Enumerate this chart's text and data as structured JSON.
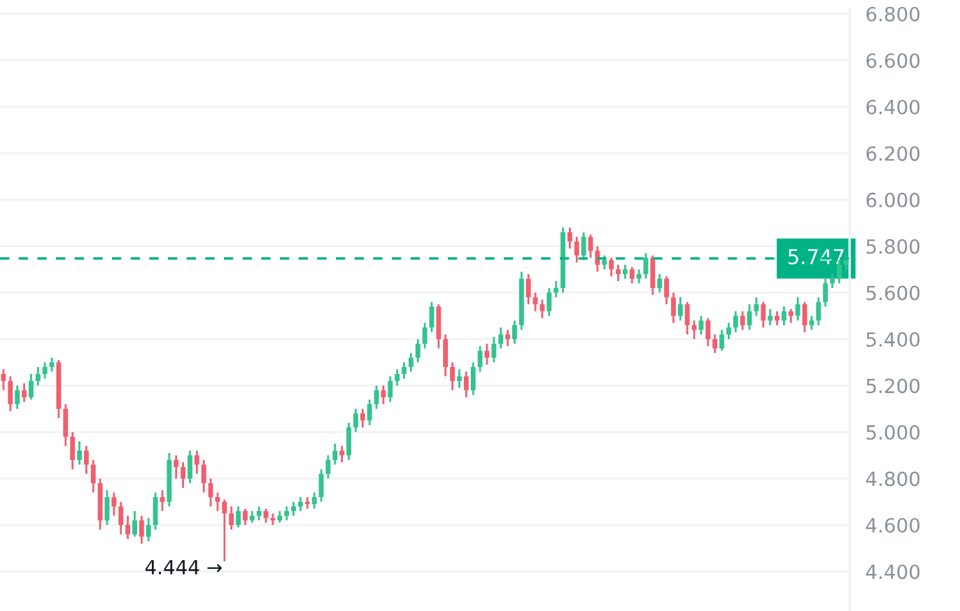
{
  "chart_data": {
    "type": "candlestick",
    "categories": [
      null,
      null,
      null,
      null,
      null,
      null,
      null,
      null,
      null,
      null,
      null,
      null,
      null,
      null,
      null,
      null,
      null,
      null,
      null,
      null,
      null,
      null,
      null,
      null,
      null,
      null,
      null,
      null,
      null,
      null,
      null,
      null,
      null,
      null,
      null,
      null,
      null,
      null,
      null,
      null,
      null,
      null,
      null,
      null,
      null,
      null,
      null,
      null,
      null,
      null,
      null,
      null,
      null,
      null,
      null,
      null,
      null,
      null,
      null,
      null,
      null,
      null,
      null,
      null,
      null,
      null,
      null,
      null,
      null,
      null,
      null,
      null,
      null,
      null,
      null,
      null,
      null,
      null,
      null,
      null,
      null,
      null,
      null,
      null,
      null,
      null,
      null,
      null,
      null,
      null,
      null,
      null,
      null,
      null,
      null,
      null,
      null,
      null,
      null,
      null,
      null,
      null,
      null,
      null,
      null,
      null,
      null,
      null,
      null,
      null,
      null,
      null,
      null,
      null,
      null,
      null,
      null,
      null,
      null,
      null,
      null,
      null,
      null
    ],
    "ohlc": [
      [
        5.25,
        5.27,
        5.18,
        5.22
      ],
      [
        5.22,
        5.24,
        5.09,
        5.12
      ],
      [
        5.12,
        5.2,
        5.1,
        5.18
      ],
      [
        5.18,
        5.21,
        5.13,
        5.15
      ],
      [
        5.15,
        5.25,
        5.14,
        5.22
      ],
      [
        5.22,
        5.28,
        5.2,
        5.25
      ],
      [
        5.25,
        5.3,
        5.23,
        5.28
      ],
      [
        5.28,
        5.32,
        5.26,
        5.3
      ],
      [
        5.3,
        5.31,
        5.06,
        5.1
      ],
      [
        5.1,
        5.12,
        4.94,
        4.98
      ],
      [
        4.98,
        5.0,
        4.84,
        4.88
      ],
      [
        4.88,
        4.96,
        4.86,
        4.92
      ],
      [
        4.92,
        4.94,
        4.82,
        4.86
      ],
      [
        4.86,
        4.88,
        4.74,
        4.78
      ],
      [
        4.78,
        4.8,
        4.58,
        4.62
      ],
      [
        4.62,
        4.75,
        4.6,
        4.72
      ],
      [
        4.72,
        4.74,
        4.64,
        4.68
      ],
      [
        4.68,
        4.7,
        4.56,
        4.6
      ],
      [
        4.6,
        4.64,
        4.54,
        4.56
      ],
      [
        4.56,
        4.66,
        4.55,
        4.62
      ],
      [
        4.62,
        4.64,
        4.52,
        4.55
      ],
      [
        4.55,
        4.63,
        4.53,
        4.6
      ],
      [
        4.6,
        4.74,
        4.58,
        4.72
      ],
      [
        4.72,
        4.75,
        4.66,
        4.7
      ],
      [
        4.7,
        4.91,
        4.68,
        4.88
      ],
      [
        4.88,
        4.9,
        4.8,
        4.85
      ],
      [
        4.85,
        4.87,
        4.76,
        4.8
      ],
      [
        4.8,
        4.92,
        4.78,
        4.9
      ],
      [
        4.9,
        4.92,
        4.82,
        4.86
      ],
      [
        4.86,
        4.88,
        4.74,
        4.78
      ],
      [
        4.78,
        4.8,
        4.68,
        4.72
      ],
      [
        4.72,
        4.74,
        4.66,
        4.7
      ],
      [
        4.7,
        4.71,
        4.444,
        4.65
      ],
      [
        4.65,
        4.68,
        4.58,
        4.6
      ],
      [
        4.6,
        4.68,
        4.59,
        4.66
      ],
      [
        4.66,
        4.67,
        4.6,
        4.62
      ],
      [
        4.62,
        4.66,
        4.61,
        4.64
      ],
      [
        4.64,
        4.68,
        4.62,
        4.66
      ],
      [
        4.66,
        4.67,
        4.61,
        4.63
      ],
      [
        4.63,
        4.65,
        4.6,
        4.62
      ],
      [
        4.62,
        4.66,
        4.61,
        4.64
      ],
      [
        4.64,
        4.68,
        4.62,
        4.66
      ],
      [
        4.66,
        4.7,
        4.64,
        4.68
      ],
      [
        4.68,
        4.72,
        4.66,
        4.7
      ],
      [
        4.7,
        4.72,
        4.67,
        4.69
      ],
      [
        4.69,
        4.74,
        4.67,
        4.72
      ],
      [
        4.72,
        4.84,
        4.7,
        4.82
      ],
      [
        4.82,
        4.9,
        4.8,
        4.88
      ],
      [
        4.88,
        4.95,
        4.86,
        4.92
      ],
      [
        4.92,
        4.94,
        4.87,
        4.9
      ],
      [
        4.9,
        5.04,
        4.88,
        5.02
      ],
      [
        5.02,
        5.1,
        5.0,
        5.08
      ],
      [
        5.08,
        5.1,
        5.02,
        5.05
      ],
      [
        5.05,
        5.14,
        5.03,
        5.12
      ],
      [
        5.12,
        5.2,
        5.1,
        5.18
      ],
      [
        5.18,
        5.2,
        5.12,
        5.15
      ],
      [
        5.15,
        5.24,
        5.13,
        5.22
      ],
      [
        5.22,
        5.27,
        5.2,
        5.25
      ],
      [
        5.25,
        5.3,
        5.23,
        5.28
      ],
      [
        5.28,
        5.34,
        5.26,
        5.32
      ],
      [
        5.32,
        5.4,
        5.3,
        5.38
      ],
      [
        5.38,
        5.47,
        5.36,
        5.45
      ],
      [
        5.45,
        5.56,
        5.43,
        5.54
      ],
      [
        5.54,
        5.55,
        5.36,
        5.4
      ],
      [
        5.4,
        5.42,
        5.24,
        5.28
      ],
      [
        5.28,
        5.3,
        5.18,
        5.22
      ],
      [
        5.22,
        5.27,
        5.19,
        5.24
      ],
      [
        5.24,
        5.26,
        5.15,
        5.18
      ],
      [
        5.18,
        5.3,
        5.16,
        5.28
      ],
      [
        5.28,
        5.37,
        5.26,
        5.35
      ],
      [
        5.35,
        5.38,
        5.29,
        5.32
      ],
      [
        5.32,
        5.41,
        5.3,
        5.38
      ],
      [
        5.38,
        5.45,
        5.36,
        5.42
      ],
      [
        5.42,
        5.44,
        5.37,
        5.4
      ],
      [
        5.4,
        5.48,
        5.38,
        5.46
      ],
      [
        5.46,
        5.69,
        5.44,
        5.66
      ],
      [
        5.66,
        5.68,
        5.55,
        5.58
      ],
      [
        5.58,
        5.6,
        5.52,
        5.55
      ],
      [
        5.55,
        5.57,
        5.49,
        5.52
      ],
      [
        5.52,
        5.62,
        5.5,
        5.6
      ],
      [
        5.6,
        5.65,
        5.58,
        5.62
      ],
      [
        5.62,
        5.88,
        5.6,
        5.86
      ],
      [
        5.86,
        5.88,
        5.79,
        5.82
      ],
      [
        5.82,
        5.84,
        5.73,
        5.76
      ],
      [
        5.76,
        5.86,
        5.74,
        5.84
      ],
      [
        5.84,
        5.85,
        5.75,
        5.78
      ],
      [
        5.78,
        5.8,
        5.69,
        5.72
      ],
      [
        5.72,
        5.76,
        5.7,
        5.74
      ],
      [
        5.74,
        5.75,
        5.67,
        5.7
      ],
      [
        5.7,
        5.72,
        5.65,
        5.68
      ],
      [
        5.68,
        5.72,
        5.66,
        5.7
      ],
      [
        5.7,
        5.71,
        5.64,
        5.66
      ],
      [
        5.66,
        5.7,
        5.64,
        5.68
      ],
      [
        5.68,
        5.77,
        5.66,
        5.75
      ],
      [
        5.75,
        5.76,
        5.59,
        5.62
      ],
      [
        5.62,
        5.68,
        5.6,
        5.66
      ],
      [
        5.66,
        5.67,
        5.55,
        5.58
      ],
      [
        5.58,
        5.6,
        5.47,
        5.5
      ],
      [
        5.5,
        5.58,
        5.48,
        5.55
      ],
      [
        5.55,
        5.56,
        5.42,
        5.46
      ],
      [
        5.46,
        5.48,
        5.4,
        5.44
      ],
      [
        5.44,
        5.5,
        5.42,
        5.48
      ],
      [
        5.48,
        5.49,
        5.37,
        5.4
      ],
      [
        5.4,
        5.42,
        5.34,
        5.36
      ],
      [
        5.36,
        5.44,
        5.35,
        5.42
      ],
      [
        5.42,
        5.47,
        5.4,
        5.45
      ],
      [
        5.45,
        5.52,
        5.43,
        5.5
      ],
      [
        5.5,
        5.52,
        5.44,
        5.46
      ],
      [
        5.46,
        5.55,
        5.44,
        5.52
      ],
      [
        5.52,
        5.58,
        5.5,
        5.55
      ],
      [
        5.55,
        5.56,
        5.45,
        5.48
      ],
      [
        5.48,
        5.53,
        5.46,
        5.5
      ],
      [
        5.5,
        5.52,
        5.46,
        5.48
      ],
      [
        5.48,
        5.54,
        5.46,
        5.52
      ],
      [
        5.52,
        5.53,
        5.47,
        5.5
      ],
      [
        5.5,
        5.58,
        5.48,
        5.55
      ],
      [
        5.55,
        5.56,
        5.43,
        5.46
      ],
      [
        5.46,
        5.5,
        5.44,
        5.48
      ],
      [
        5.48,
        5.58,
        5.46,
        5.56
      ],
      [
        5.56,
        5.66,
        5.54,
        5.64
      ],
      [
        5.64,
        5.68,
        5.62,
        5.66
      ],
      [
        5.66,
        5.74,
        5.64,
        5.72
      ],
      [
        5.72,
        5.76,
        5.7,
        5.747
      ]
    ],
    "colors": [
      "#ef5f6f",
      "#ef5f6f",
      "#34c38f",
      "#ef5f6f",
      "#34c38f",
      "#34c38f",
      "#34c38f",
      "#34c38f",
      "#ef5f6f",
      "#ef5f6f",
      "#ef5f6f",
      "#34c38f",
      "#ef5f6f",
      "#ef5f6f",
      "#ef5f6f",
      "#34c38f",
      "#ef5f6f",
      "#ef5f6f",
      "#ef5f6f",
      "#34c38f",
      "#ef5f6f",
      "#34c38f",
      "#34c38f",
      "#ef5f6f",
      "#34c38f",
      "#ef5f6f",
      "#ef5f6f",
      "#34c38f",
      "#ef5f6f",
      "#ef5f6f",
      "#ef5f6f",
      "#ef5f6f",
      "#ef5f6f",
      "#ef5f6f",
      "#34c38f",
      "#ef5f6f",
      "#34c38f",
      "#34c38f",
      "#ef5f6f",
      "#ef5f6f",
      "#34c38f",
      "#34c38f",
      "#34c38f",
      "#34c38f",
      "#ef5f6f",
      "#34c38f",
      "#34c38f",
      "#34c38f",
      "#34c38f",
      "#ef5f6f",
      "#34c38f",
      "#34c38f",
      "#ef5f6f",
      "#34c38f",
      "#34c38f",
      "#ef5f6f",
      "#34c38f",
      "#34c38f",
      "#34c38f",
      "#34c38f",
      "#34c38f",
      "#34c38f",
      "#34c38f",
      "#ef5f6f",
      "#ef5f6f",
      "#ef5f6f",
      "#34c38f",
      "#ef5f6f",
      "#34c38f",
      "#34c38f",
      "#ef5f6f",
      "#34c38f",
      "#34c38f",
      "#ef5f6f",
      "#34c38f",
      "#34c38f",
      "#ef5f6f",
      "#ef5f6f",
      "#ef5f6f",
      "#34c38f",
      "#34c38f",
      "#34c38f",
      "#ef5f6f",
      "#ef5f6f",
      "#34c38f",
      "#ef5f6f",
      "#ef5f6f",
      "#34c38f",
      "#ef5f6f",
      "#ef5f6f",
      "#34c38f",
      "#ef5f6f",
      "#34c38f",
      "#34c38f",
      "#ef5f6f",
      "#34c38f",
      "#ef5f6f",
      "#ef5f6f",
      "#34c38f",
      "#ef5f6f",
      "#ef5f6f",
      "#34c38f",
      "#ef5f6f",
      "#ef5f6f",
      "#34c38f",
      "#34c38f",
      "#34c38f",
      "#ef5f6f",
      "#34c38f",
      "#34c38f",
      "#ef5f6f",
      "#34c38f",
      "#ef5f6f",
      "#34c38f",
      "#ef5f6f",
      "#34c38f",
      "#ef5f6f",
      "#34c38f",
      "#34c38f",
      "#34c38f",
      "#34c38f",
      "#34c38f",
      "#34c38f"
    ],
    "ylim": [
      4.23,
      6.82
    ],
    "yticks": [
      {
        "value": 4.4,
        "label": "4.400"
      },
      {
        "value": 4.6,
        "label": "4.600"
      },
      {
        "value": 4.8,
        "label": "4.800"
      },
      {
        "value": 5.0,
        "label": "5.000"
      },
      {
        "value": 5.2,
        "label": "5.200"
      },
      {
        "value": 5.4,
        "label": "5.400"
      },
      {
        "value": 5.6,
        "label": "5.600"
      },
      {
        "value": 5.8,
        "label": "5.800"
      },
      {
        "value": 6.0,
        "label": "6.000"
      },
      {
        "value": 6.2,
        "label": "6.200"
      },
      {
        "value": 6.4,
        "label": "6.400"
      },
      {
        "value": 6.6,
        "label": "6.600"
      },
      {
        "value": 6.8,
        "label": "6.800"
      }
    ],
    "ref_lines": [
      {
        "axis": "y",
        "value": 5.747,
        "label": "5.747",
        "color": "#00b386",
        "line_style": "dashed"
      }
    ],
    "annotations": [
      "4.444 →"
    ],
    "grid": "y"
  }
}
